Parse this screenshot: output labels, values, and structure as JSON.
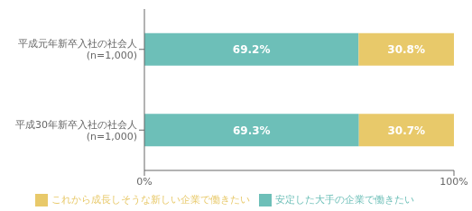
{
  "chart_data": {
    "type": "bar",
    "orientation": "horizontal",
    "stacked": true,
    "data_labels": true,
    "grid": false,
    "legend": "bottom",
    "categories": [
      "平成元年新卒入社の社会人\n(n=1,000)",
      "平成30年新卒入社の社会人\n(n=1,000)"
    ],
    "series": [
      {
        "name": "安定した大手の企業で働きたい",
        "color": "#6dbfb8",
        "values": [
          69.2,
          69.3
        ],
        "value_labels": [
          "69.2%",
          "69.3%"
        ]
      },
      {
        "name": "これから成長しそうな新しい企業で働きたい",
        "color": "#e8c96a",
        "values": [
          30.8,
          30.7
        ],
        "value_labels": [
          "30.8%",
          "30.7%"
        ]
      }
    ],
    "xlim": [
      0,
      100
    ],
    "xticks": [
      {
        "value": 0,
        "label": "0%"
      },
      {
        "value": 100,
        "label": "100%"
      }
    ]
  }
}
